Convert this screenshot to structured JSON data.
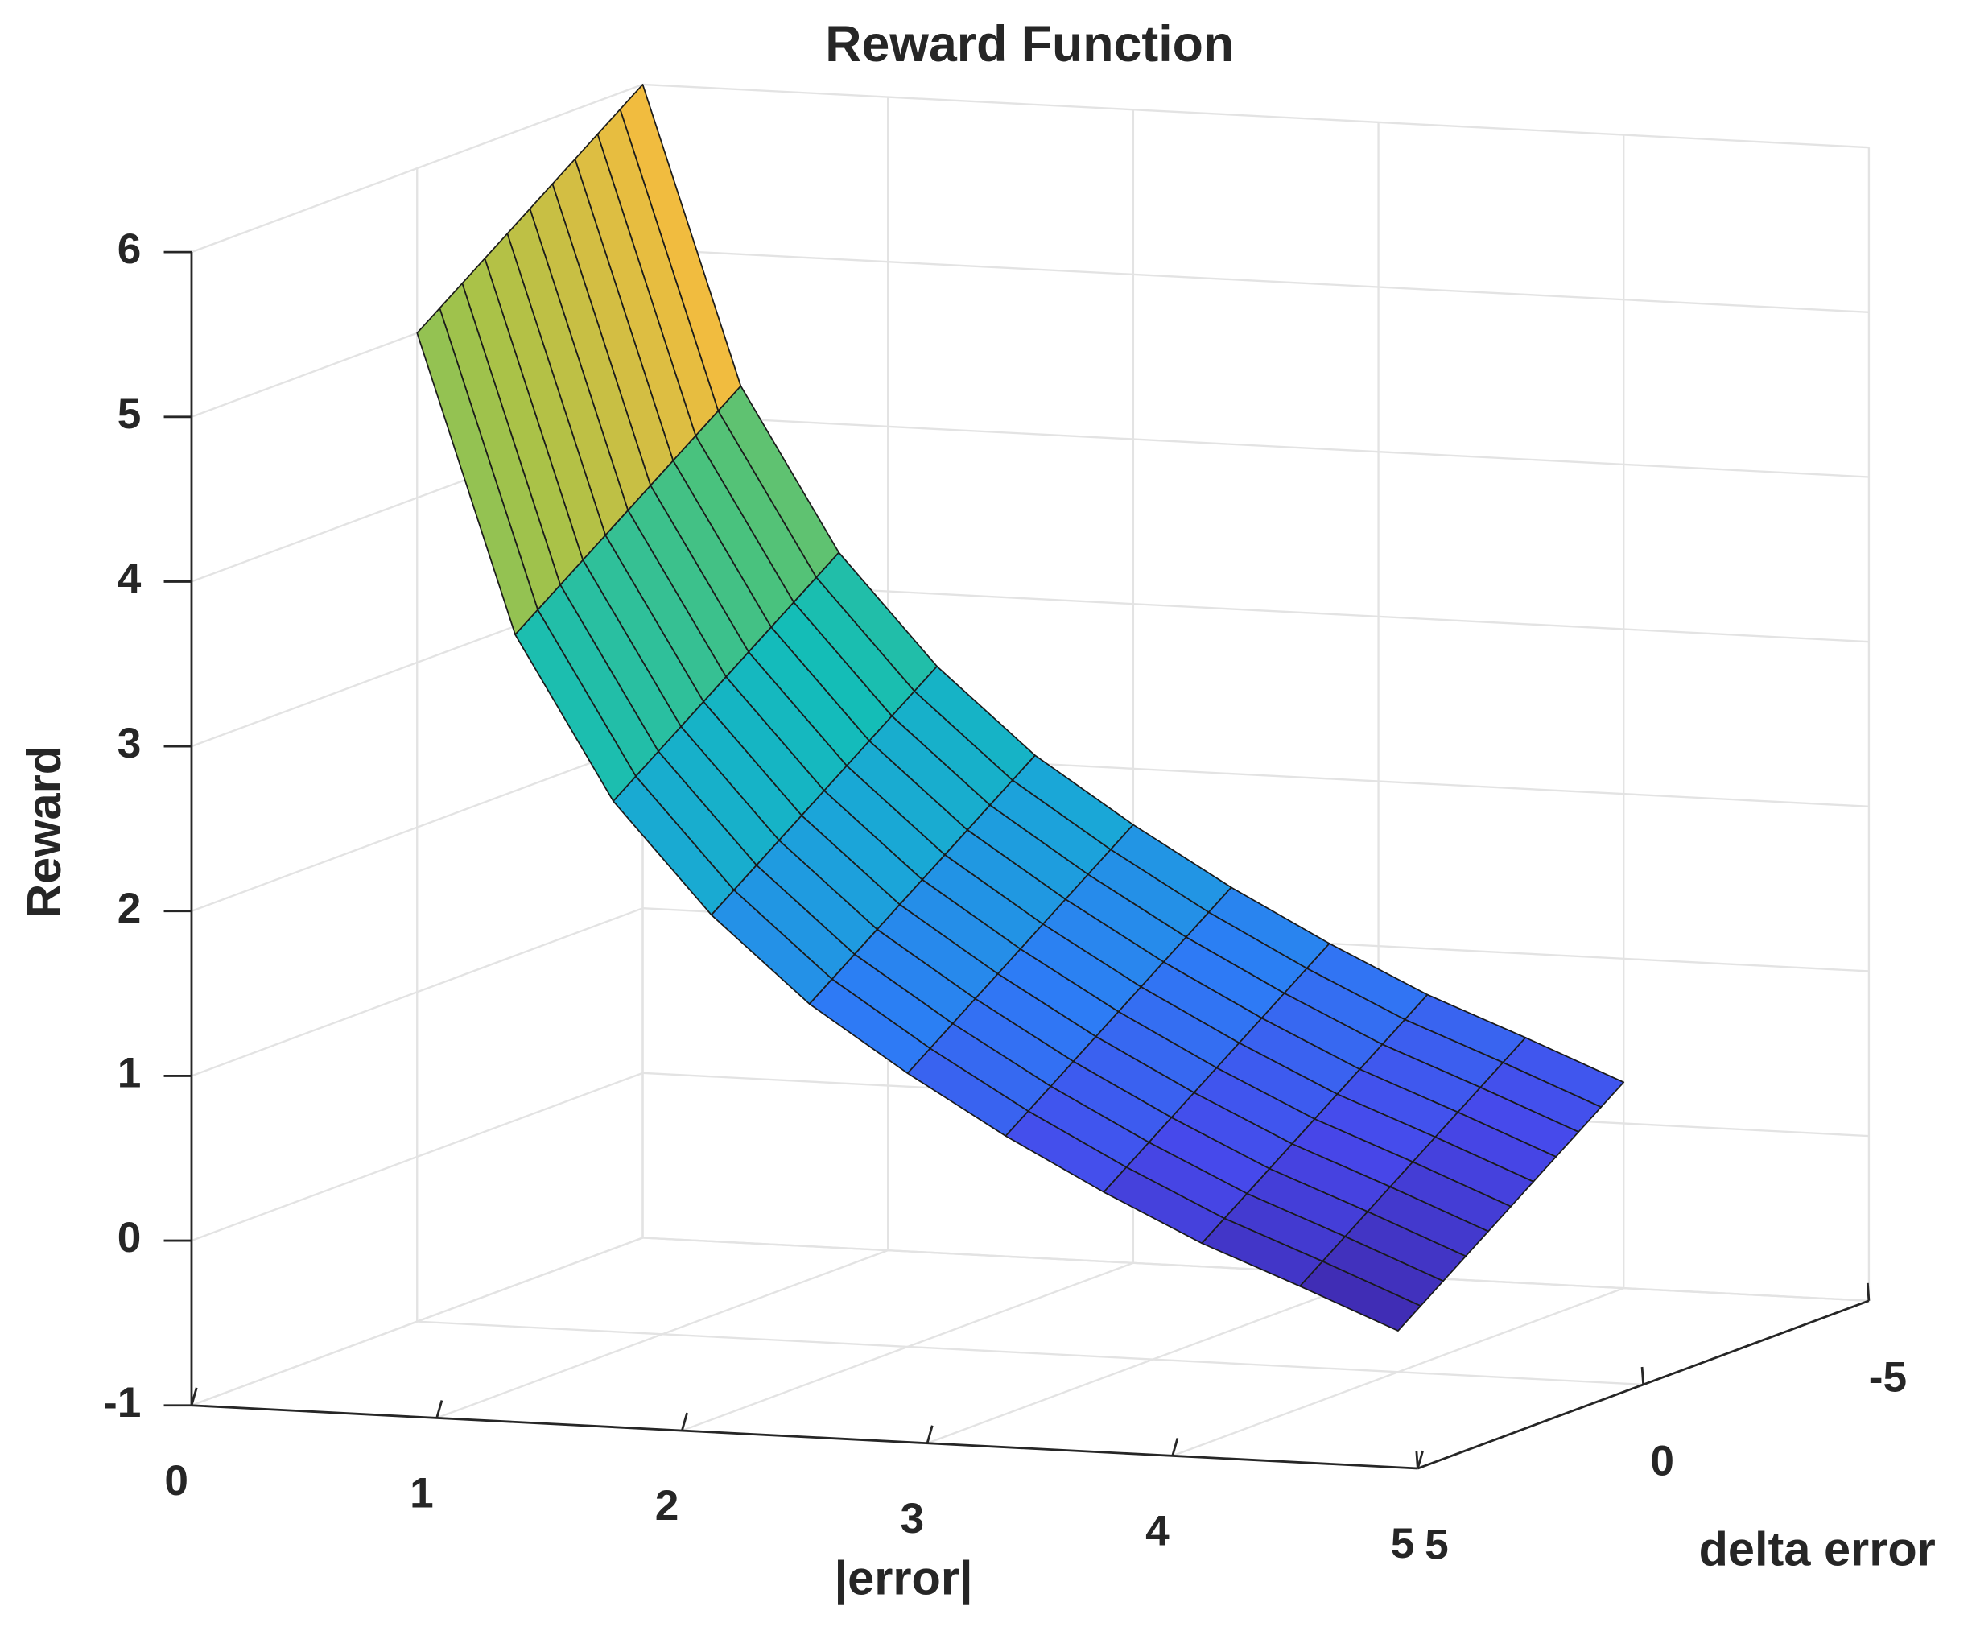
{
  "chart_data": {
    "type": "surface",
    "title": "Reward Function",
    "xlabel": "|error|",
    "ylabel": "delta error",
    "zlabel": "Reward",
    "x": [
      0,
      0.4,
      0.8,
      1.2,
      1.6,
      2.0,
      2.4,
      2.8,
      3.2,
      3.6,
      4.0
    ],
    "y": [
      -5,
      -4.5,
      -4,
      -3.5,
      -3,
      -2.5,
      -2,
      -1.5,
      -1,
      -0.5,
      0
    ],
    "z": [
      [
        6,
        4.2,
        3.22,
        2.56,
        2.05,
        1.66,
        1.31,
        1.0,
        0.72,
        0.49,
        0.25
      ],
      [
        5.9,
        4.1,
        3.12,
        2.46,
        1.95,
        1.56,
        1.21,
        0.9,
        0.62,
        0.39,
        0.15
      ],
      [
        5.8,
        4.0,
        3.02,
        2.36,
        1.85,
        1.46,
        1.11,
        0.8,
        0.52,
        0.29,
        0.05
      ],
      [
        5.7,
        3.9,
        2.92,
        2.26,
        1.75,
        1.36,
        1.01,
        0.7,
        0.42,
        0.19,
        -0.05
      ],
      [
        5.6,
        3.8,
        2.82,
        2.16,
        1.65,
        1.26,
        0.91,
        0.6,
        0.32,
        0.09,
        -0.15
      ],
      [
        5.5,
        3.7,
        2.72,
        2.06,
        1.55,
        1.16,
        0.81,
        0.5,
        0.22,
        -0.01,
        -0.25
      ],
      [
        5.4,
        3.6,
        2.62,
        1.96,
        1.45,
        1.06,
        0.71,
        0.4,
        0.12,
        -0.11,
        -0.35
      ],
      [
        5.3,
        3.5,
        2.52,
        1.86,
        1.35,
        0.96,
        0.61,
        0.3,
        0.02,
        -0.21,
        -0.45
      ],
      [
        5.2,
        3.4,
        2.42,
        1.76,
        1.25,
        0.86,
        0.51,
        0.2,
        -0.08,
        -0.31,
        -0.55
      ],
      [
        5.1,
        3.3,
        2.32,
        1.66,
        1.15,
        0.76,
        0.41,
        0.1,
        -0.18,
        -0.41,
        -0.65
      ],
      [
        5,
        3.2,
        2.22,
        1.56,
        1.05,
        0.66,
        0.31,
        0,
        -0.28,
        -0.51,
        -0.75
      ]
    ],
    "xlim": [
      0,
      5
    ],
    "xticks": [
      0,
      1,
      2,
      3,
      4,
      5
    ],
    "ylim": [
      -5,
      5
    ],
    "yticks": [
      -5,
      0,
      5
    ],
    "zlim": [
      -1,
      6
    ],
    "zticks": [
      -1,
      0,
      1,
      2,
      3,
      4,
      5,
      6
    ],
    "grid": true,
    "colormap": [
      "#3e26a8",
      "#4748eb",
      "#2d7cf5",
      "#1aa6d8",
      "#13bdb8",
      "#4ac27d",
      "#a6c248",
      "#fcbb3e",
      "#f9fb15"
    ],
    "edgecolor": "#1a1a1a"
  }
}
